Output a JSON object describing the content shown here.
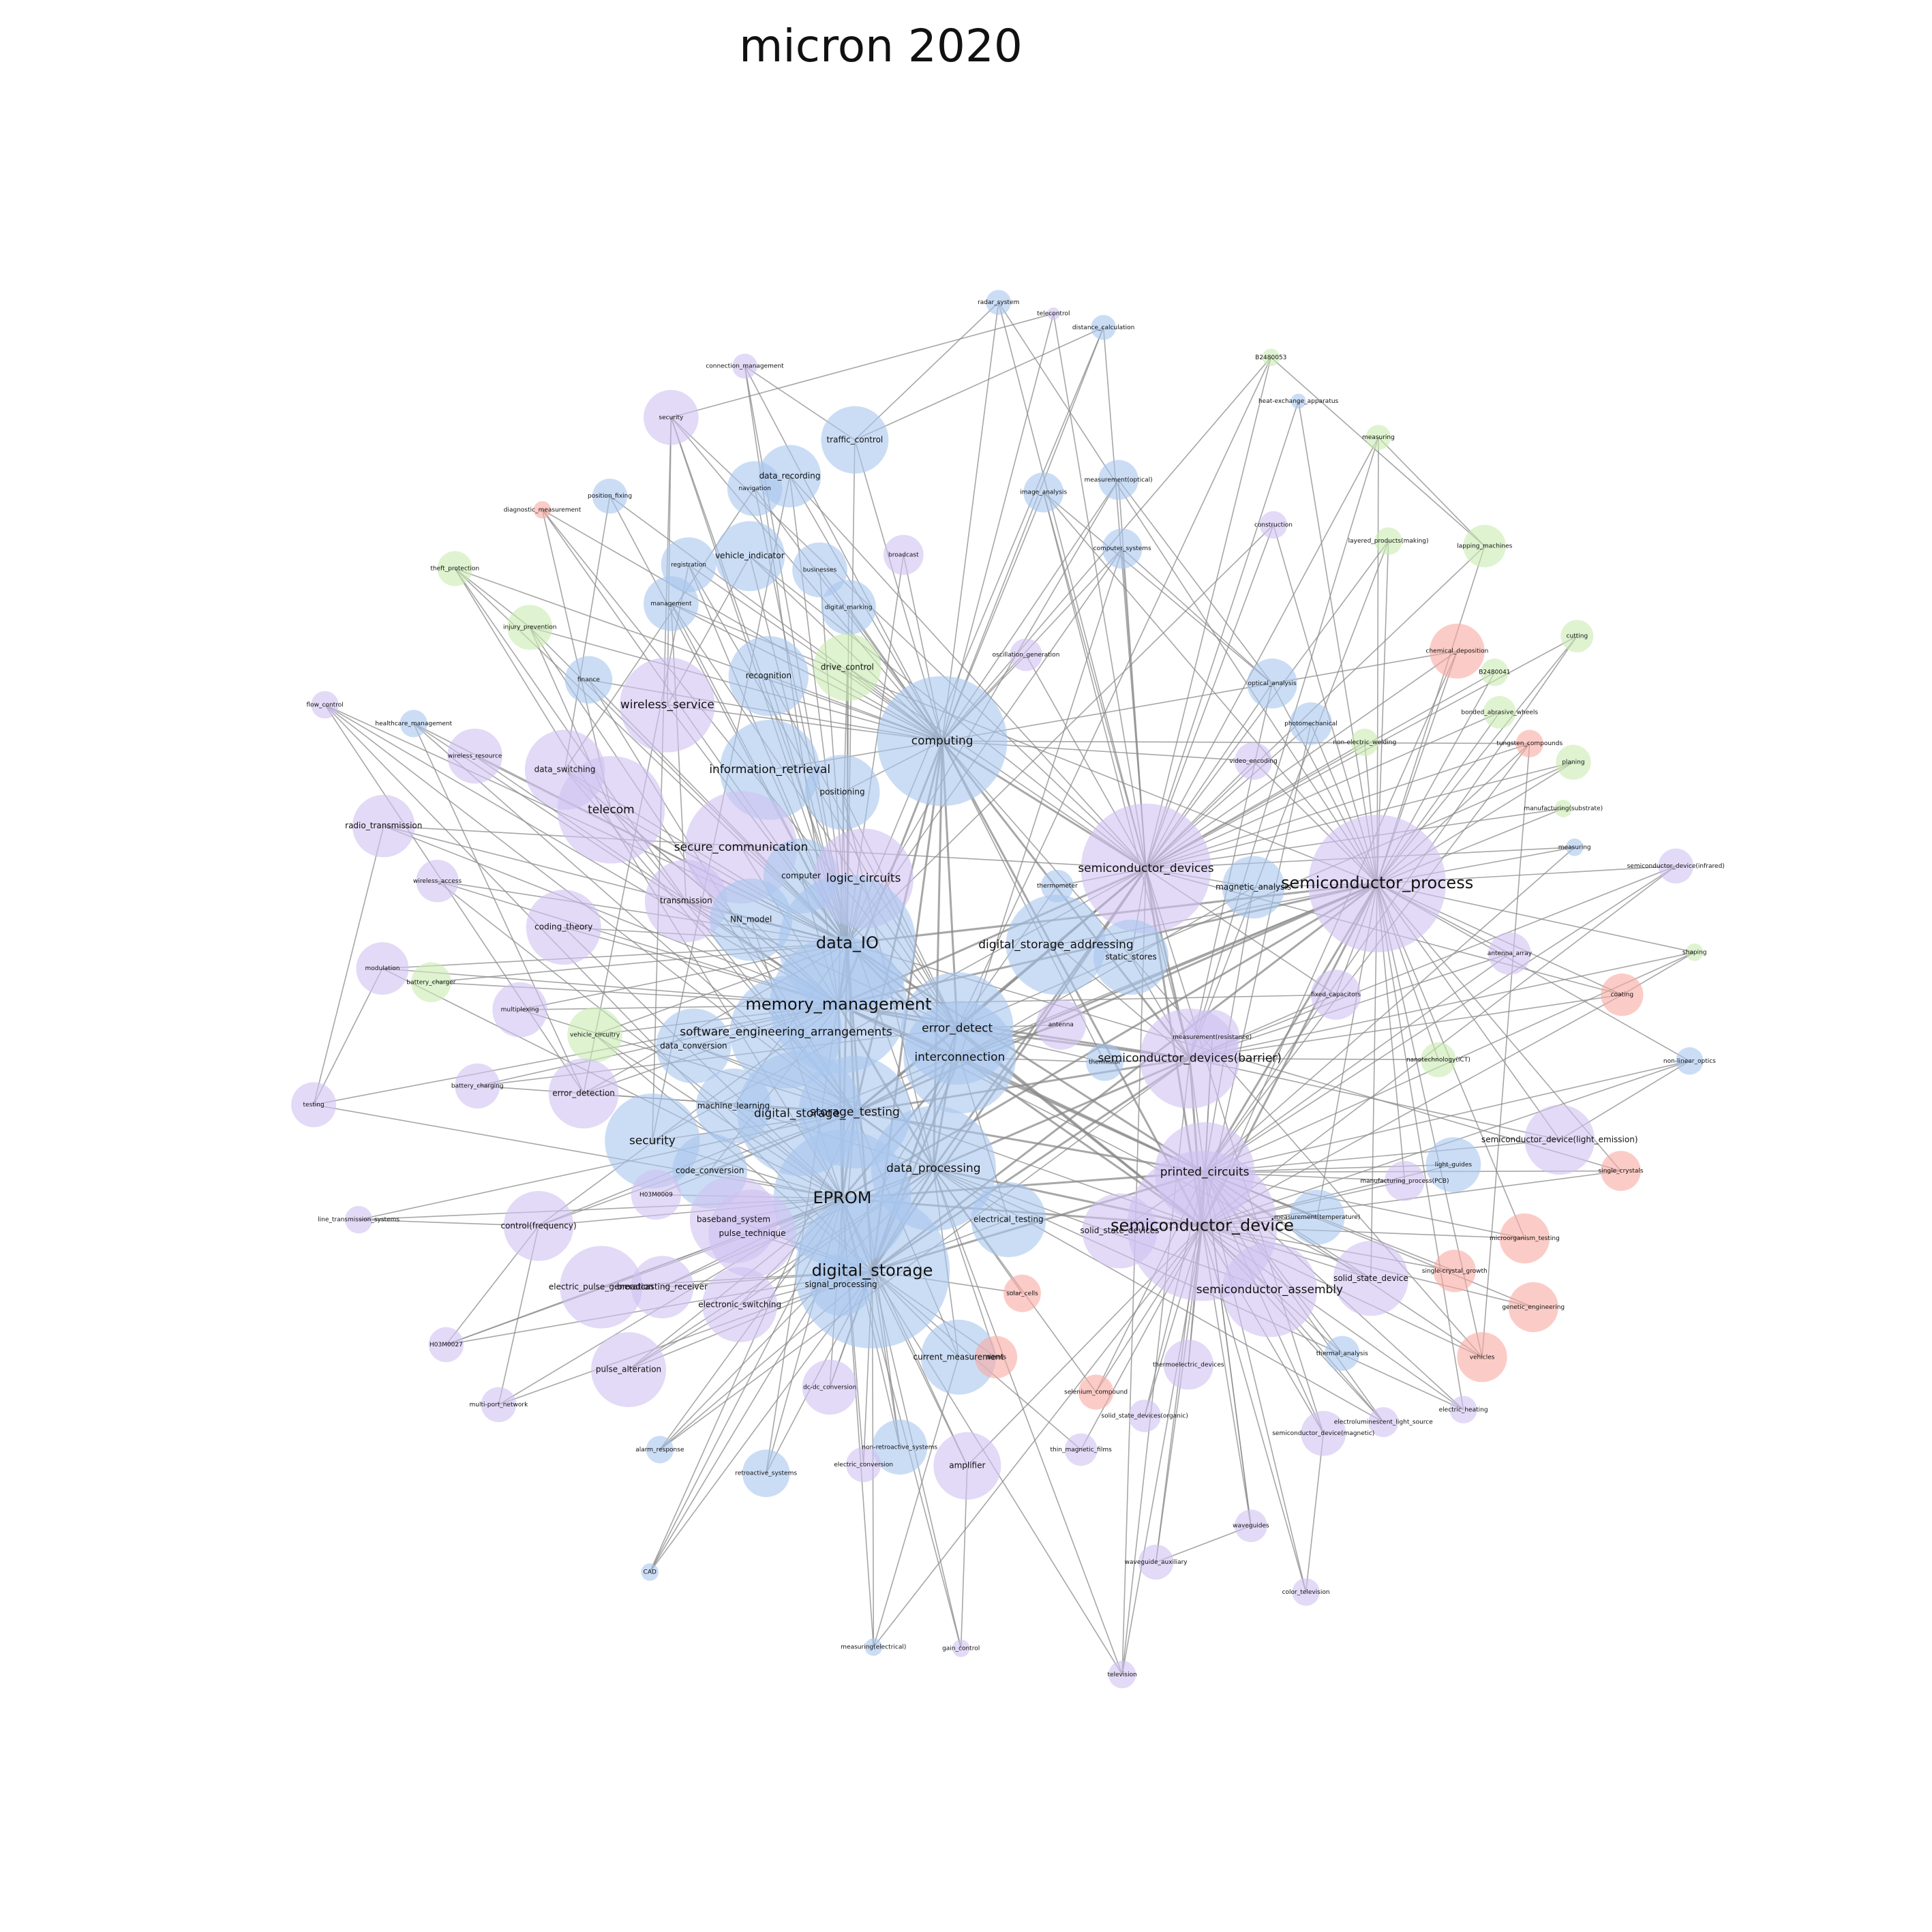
{
  "title": "micron 2020",
  "nodes": [
    {
      "label": "radar_system"
    },
    {
      "label": "telecontrol"
    },
    {
      "label": "distance_calculation"
    },
    {
      "label": "B2480053"
    },
    {
      "label": "connection_management"
    },
    {
      "label": "heat-exchange_apparatus"
    },
    {
      "label": "security"
    },
    {
      "label": "traffic_control"
    },
    {
      "label": "measuring"
    },
    {
      "label": "data_recording"
    },
    {
      "label": "measurement(optical)"
    },
    {
      "label": "navigation"
    },
    {
      "label": "image_analysis"
    },
    {
      "label": "position_fixing"
    },
    {
      "label": "diagnostic_measurement"
    },
    {
      "label": "construction"
    },
    {
      "label": "layered_products(making)"
    },
    {
      "label": "lapping_machines"
    },
    {
      "label": "computer_systems"
    },
    {
      "label": "broadcast"
    },
    {
      "label": "vehicle_indicator"
    },
    {
      "label": "theft_protection"
    },
    {
      "label": "registration"
    },
    {
      "label": "businesses"
    },
    {
      "label": "management"
    },
    {
      "label": "digital_marking"
    },
    {
      "label": "injury_prevention"
    },
    {
      "label": "cutting"
    },
    {
      "label": "chemical_deposition"
    },
    {
      "label": "oscillation_generation"
    },
    {
      "label": "drive_control"
    },
    {
      "label": "B2480041"
    },
    {
      "label": "recognition"
    },
    {
      "label": "finance"
    },
    {
      "label": "optical_analysis"
    },
    {
      "label": "wireless_service"
    },
    {
      "label": "flow_control"
    },
    {
      "label": "bonded_abrasive_wheels"
    },
    {
      "label": "healthcare_management"
    },
    {
      "label": "photomechanical"
    },
    {
      "label": "computing"
    },
    {
      "label": "non-electric_welding"
    },
    {
      "label": "tungsten_compounds"
    },
    {
      "label": "wireless_resource"
    },
    {
      "label": "video_encoding"
    },
    {
      "label": "planing"
    },
    {
      "label": "data_switching"
    },
    {
      "label": "information_retrieval"
    },
    {
      "label": "positioning"
    },
    {
      "label": "manufacturing(substrate)"
    },
    {
      "label": "telecom"
    },
    {
      "label": "radio_transmission"
    },
    {
      "label": "measuring"
    },
    {
      "label": "secure_communication"
    },
    {
      "label": "semiconductor_device(infrared)"
    },
    {
      "label": "semiconductor_devices"
    },
    {
      "label": "computer"
    },
    {
      "label": "logic_circuits"
    },
    {
      "label": "wireless_access"
    },
    {
      "label": "thermometer"
    },
    {
      "label": "magnetic_analysis"
    },
    {
      "label": "semiconductor_process"
    },
    {
      "label": "transmission"
    },
    {
      "label": "NN_model"
    },
    {
      "label": "coding_theory"
    },
    {
      "label": "data_IO"
    },
    {
      "label": "digital_storage_addressing"
    },
    {
      "label": "static_stores"
    },
    {
      "label": "antenna_array"
    },
    {
      "label": "shaping"
    },
    {
      "label": "modulation"
    },
    {
      "label": "battery_charger"
    },
    {
      "label": "fixed_capacitors"
    },
    {
      "label": "coating"
    },
    {
      "label": "memory_management"
    },
    {
      "label": "multiplexing"
    },
    {
      "label": "error_detect"
    },
    {
      "label": "antenna"
    },
    {
      "label": "vehicle_circuitry"
    },
    {
      "label": "software_engineering_arrangements"
    },
    {
      "label": "measurement(resistance)"
    },
    {
      "label": "data_conversion"
    },
    {
      "label": "interconnection"
    },
    {
      "label": "semiconductor_devices(barrier)"
    },
    {
      "label": "thermistor"
    },
    {
      "label": "nanotechnology(ICT)"
    },
    {
      "label": "non-linear_optics"
    },
    {
      "label": "battery_charging"
    },
    {
      "label": "error_detection"
    },
    {
      "label": "testing"
    },
    {
      "label": "machine_learning"
    },
    {
      "label": "digital_storage_"
    },
    {
      "label": "storage_testing"
    },
    {
      "label": "security"
    },
    {
      "label": "semiconductor_device(light_emission)"
    },
    {
      "label": "printed_circuits"
    },
    {
      "label": "data_processing"
    },
    {
      "label": "light_guides"
    },
    {
      "label": "code_conversion"
    },
    {
      "label": "single_crystals"
    },
    {
      "label": "manufacturing_process(PCB)"
    },
    {
      "label": "H03M0009"
    },
    {
      "label": "EPROM"
    },
    {
      "label": "baseband_system"
    },
    {
      "label": "electrical_testing"
    },
    {
      "label": "line_transmission_systems"
    },
    {
      "label": "measurement(temperature)"
    },
    {
      "label": "semiconductor_device"
    },
    {
      "label": "control(frequency)"
    },
    {
      "label": "solid_state_devices"
    },
    {
      "label": "pulse_technique"
    },
    {
      "label": "microorganism_testing"
    },
    {
      "label": "digital_storage"
    },
    {
      "label": "single-crystal_growth"
    },
    {
      "label": "solid_state_device"
    },
    {
      "label": "electric_pulse_generation"
    },
    {
      "label": "broadcasting_receiver"
    },
    {
      "label": "signal_processing"
    },
    {
      "label": "semiconductor_assembly"
    },
    {
      "label": "solar_cells"
    },
    {
      "label": "electronic_switching"
    },
    {
      "label": "genetic_engineering"
    },
    {
      "label": "H03M0027"
    },
    {
      "label": "thermal_analysis"
    },
    {
      "label": "current_measurement"
    },
    {
      "label": "alarms"
    },
    {
      "label": "vehicles"
    },
    {
      "label": "thermoelectric_devices"
    },
    {
      "label": "pulse_alteration"
    },
    {
      "label": "dc-dc_conversion"
    },
    {
      "label": "selenium_compound"
    },
    {
      "label": "multi-port_network"
    },
    {
      "label": "electric_heating"
    },
    {
      "label": "solid_state_devices(organic)"
    },
    {
      "label": "electroluminescent_light_source"
    },
    {
      "label": "semiconductor_device(magnetic)"
    },
    {
      "label": "non-retroactive_systems"
    },
    {
      "label": "thin_magnetic_films"
    },
    {
      "label": "alarm_response"
    },
    {
      "label": "electric_conversion"
    },
    {
      "label": "amplifier"
    },
    {
      "label": "retroactive_systems"
    },
    {
      "label": "waveguides"
    },
    {
      "label": "waveguide_auxiliary"
    },
    {
      "label": "CAD"
    },
    {
      "label": "color_television"
    },
    {
      "label": "measuring(electrical)"
    },
    {
      "label": "gain_control"
    },
    {
      "label": "television"
    }
  ]
}
